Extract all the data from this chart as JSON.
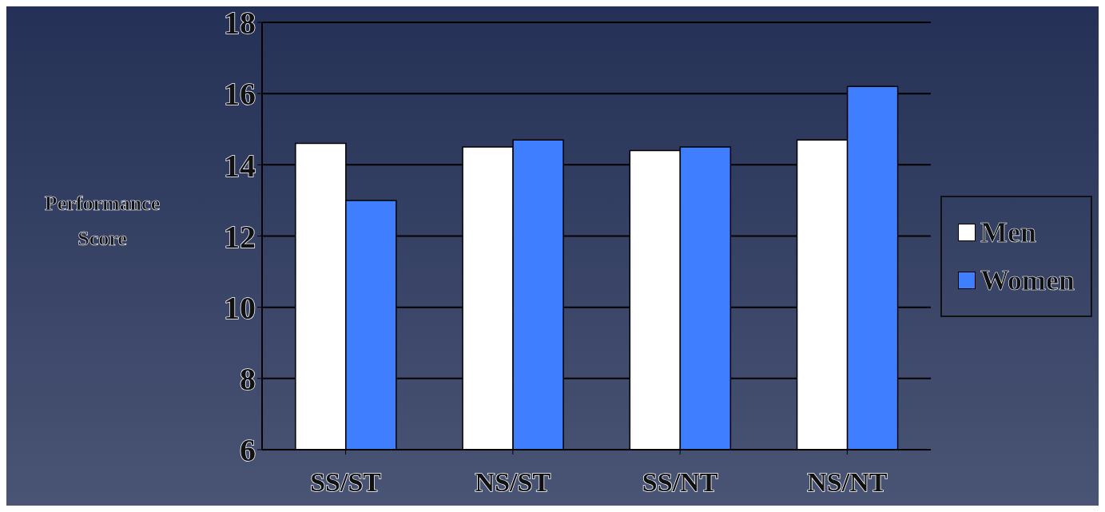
{
  "chart_data": {
    "type": "bar",
    "ylabel": "Performance Score",
    "categories": [
      "SS/ST",
      "NS/ST",
      "SS/NT",
      "NS/NT"
    ],
    "series": [
      {
        "name": "Men",
        "color": "#ffffff",
        "values": [
          14.6,
          14.5,
          14.4,
          14.7
        ]
      },
      {
        "name": "Women",
        "color": "#3f7fff",
        "values": [
          13.0,
          14.7,
          14.5,
          16.2
        ]
      }
    ],
    "ylim": [
      6,
      18
    ],
    "yticks": [
      6,
      8,
      10,
      12,
      14,
      16,
      18
    ],
    "grid": "y",
    "legend": "right"
  }
}
